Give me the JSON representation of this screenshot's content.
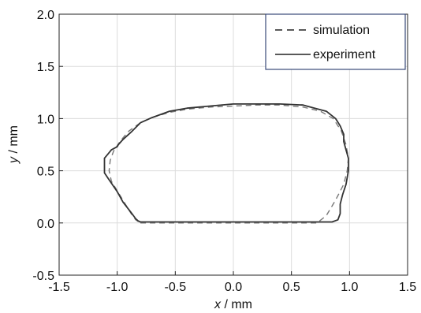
{
  "chart_data": {
    "type": "line",
    "title": "",
    "xlabel": {
      "var": "x",
      "unit": " / mm"
    },
    "ylabel": {
      "var": "y",
      "unit": " / mm"
    },
    "xlim": [
      -1.5,
      1.5
    ],
    "ylim": [
      -0.5,
      2.0
    ],
    "xticks": [
      -1.5,
      -1.0,
      -0.5,
      0.0,
      0.5,
      1.0,
      1.5
    ],
    "xtick_labels": [
      "-1.5",
      "-1.0",
      "-0.5",
      "0.0",
      "0.5",
      "1.0",
      "1.5"
    ],
    "yticks": [
      -0.5,
      0.0,
      0.5,
      1.0,
      1.5,
      2.0
    ],
    "ytick_labels": [
      "-0.5",
      "0.0",
      "0.5",
      "1.0",
      "1.5",
      "2.0"
    ],
    "grid": true,
    "legend_position": "top-right",
    "series": [
      {
        "name": "simulation",
        "style": "dashed",
        "color": "#777777",
        "x": [
          -0.8,
          -0.5,
          0.0,
          0.5,
          0.72,
          0.8,
          0.88,
          0.95,
          0.98,
          0.99,
          0.97,
          0.93,
          0.86,
          0.75,
          0.6,
          0.4,
          0.2,
          0.0,
          -0.2,
          -0.4,
          -0.55,
          -0.7,
          -0.8,
          -0.9,
          -0.97,
          -1.03,
          -1.06,
          -1.07,
          -1.05,
          -0.99,
          -0.93,
          -0.88,
          -0.84,
          -0.8
        ],
        "y": [
          0.0,
          0.0,
          0.0,
          0.0,
          0.0,
          0.07,
          0.22,
          0.37,
          0.5,
          0.62,
          0.75,
          0.88,
          1.0,
          1.07,
          1.11,
          1.13,
          1.13,
          1.12,
          1.11,
          1.09,
          1.06,
          1.01,
          0.96,
          0.88,
          0.79,
          0.69,
          0.6,
          0.5,
          0.4,
          0.29,
          0.18,
          0.09,
          0.03,
          0.0
        ]
      },
      {
        "name": "experiment",
        "style": "solid",
        "color": "#333333",
        "x": [
          -0.8,
          -0.5,
          0.0,
          0.5,
          0.7,
          0.85,
          0.9,
          0.92,
          0.92,
          0.94,
          0.97,
          0.99,
          0.99,
          0.97,
          0.95,
          0.95,
          0.92,
          0.88,
          0.8,
          0.7,
          0.6,
          0.4,
          0.2,
          0.0,
          -0.2,
          -0.4,
          -0.55,
          -0.7,
          -0.8,
          -0.88,
          -0.95,
          -0.99,
          -1.0,
          -1.05,
          -1.08,
          -1.11,
          -1.11,
          -1.08,
          -1.0,
          -0.95,
          -0.88,
          -0.84,
          -0.82,
          -0.8
        ],
        "y": [
          0.01,
          0.01,
          0.01,
          0.01,
          0.01,
          0.01,
          0.03,
          0.09,
          0.18,
          0.27,
          0.37,
          0.5,
          0.62,
          0.7,
          0.78,
          0.85,
          0.93,
          1.0,
          1.07,
          1.1,
          1.13,
          1.14,
          1.14,
          1.14,
          1.12,
          1.1,
          1.07,
          1.01,
          0.96,
          0.87,
          0.8,
          0.75,
          0.73,
          0.7,
          0.66,
          0.62,
          0.48,
          0.43,
          0.3,
          0.2,
          0.1,
          0.04,
          0.02,
          0.01
        ]
      }
    ]
  }
}
